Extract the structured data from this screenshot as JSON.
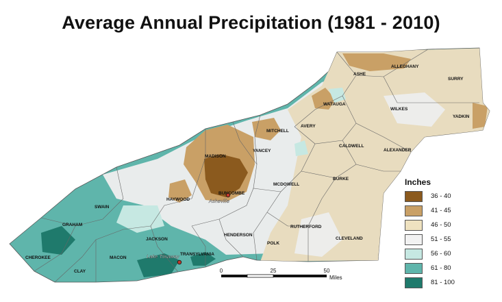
{
  "title": "Average Annual Precipitation (1981 - 2010)",
  "legend": {
    "title": "Inches",
    "items": [
      {
        "label": "36 - 40",
        "color": "#8b5a1e"
      },
      {
        "label": "41 - 45",
        "color": "#c9a066"
      },
      {
        "label": "46 - 50",
        "color": "#efe2c0"
      },
      {
        "label": "51 - 55",
        "color": "#f2f2f2"
      },
      {
        "label": "56 - 60",
        "color": "#c6e8e2"
      },
      {
        "label": "61 - 80",
        "color": "#5fb5ab"
      },
      {
        "label": "81 - 100",
        "color": "#1f7a6c"
      }
    ]
  },
  "counties": [
    "ASHE",
    "ALLEGHANY",
    "SURRY",
    "WATAUGA",
    "WILKES",
    "YADKIN",
    "MITCHELL",
    "AVERY",
    "CALDWELL",
    "ALEXANDER",
    "MADISON",
    "YANCEY",
    "BURKE",
    "MCDOWELL",
    "HAYWOOD",
    "BUNCOMBE",
    "SWAIN",
    "GRAHAM",
    "JACKSON",
    "HENDERSON",
    "RUTHERFORD",
    "CLEVELAND",
    "POLK",
    "TRANSYLVANIA",
    "CHEROKEE",
    "MACON",
    "CLAY"
  ],
  "places": [
    "Asheville",
    "Lake Toxaway"
  ],
  "scalebar": {
    "ticks": [
      "0",
      "25",
      "50"
    ],
    "unit": "Miles"
  }
}
